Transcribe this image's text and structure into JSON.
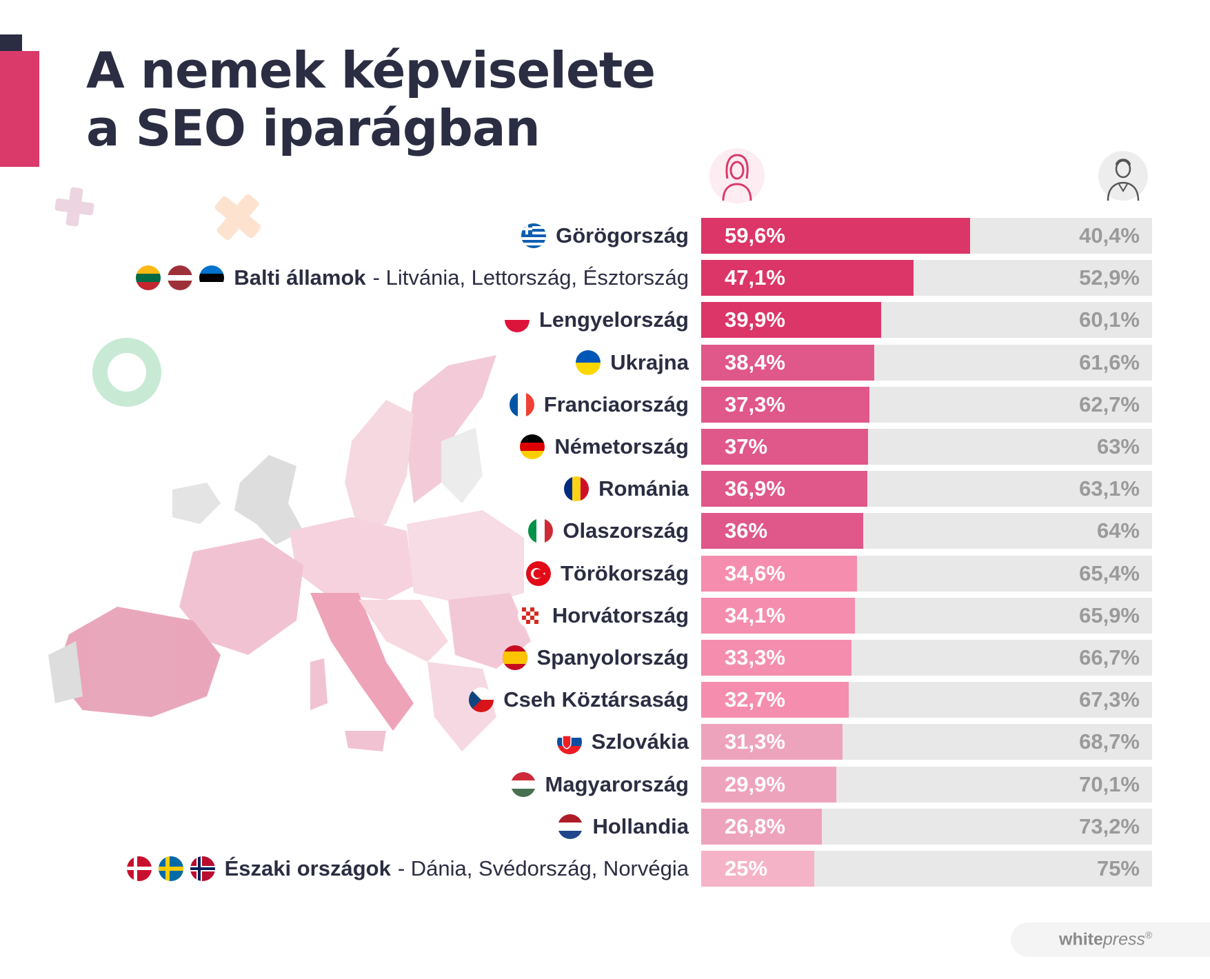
{
  "title": {
    "line1": "A nemek képviselete",
    "line2": "a SEO iparágban"
  },
  "colors": {
    "dark": "#2b2d42",
    "accent": "#d93a6a",
    "track": "#e8e8e8",
    "male_text": "#9a9a9a"
  },
  "icons": {
    "female": "female-person-icon",
    "male": "male-person-icon"
  },
  "chart_data": {
    "type": "bar",
    "stacked": true,
    "orientation": "horizontal",
    "title": "A nemek képviselete a SEO iparágban",
    "series": [
      {
        "name": "",
        "values": [
          59.6,
          47.1,
          39.9,
          38.4,
          37.3,
          37,
          36.9,
          36,
          34.6,
          34.1,
          33.3,
          32.7,
          31.3,
          29.9,
          26.8,
          25
        ]
      },
      {
        "name": "",
        "values": [
          40.4,
          52.9,
          60.1,
          61.6,
          62.7,
          63,
          63.1,
          64,
          65.4,
          65.9,
          66.7,
          67.3,
          68.7,
          70.1,
          73.2,
          75
        ]
      }
    ],
    "rows": [
      {
        "name": "Görögország",
        "sub": "",
        "flags": [
          "gr"
        ],
        "female": 59.6,
        "male": 40.4,
        "female_label": "59,6%",
        "male_label": "40,4%"
      },
      {
        "name": "Balti államok",
        "sub": "- Litvánia, Lettország, Észtország",
        "flags": [
          "lt",
          "lv",
          "ee"
        ],
        "female": 47.1,
        "male": 52.9,
        "female_label": "47,1%",
        "male_label": "52,9%"
      },
      {
        "name": "Lengyelország",
        "sub": "",
        "flags": [
          "pl"
        ],
        "female": 39.9,
        "male": 60.1,
        "female_label": "39,9%",
        "male_label": "60,1%"
      },
      {
        "name": "Ukrajna",
        "sub": "",
        "flags": [
          "ua"
        ],
        "female": 38.4,
        "male": 61.6,
        "female_label": "38,4%",
        "male_label": "61,6%"
      },
      {
        "name": "Franciaország",
        "sub": "",
        "flags": [
          "fr"
        ],
        "female": 37.3,
        "male": 62.7,
        "female_label": "37,3%",
        "male_label": "62,7%"
      },
      {
        "name": "Németország",
        "sub": "",
        "flags": [
          "de"
        ],
        "female": 37,
        "male": 63,
        "female_label": "37%",
        "male_label": "63%"
      },
      {
        "name": "Románia",
        "sub": "",
        "flags": [
          "ro"
        ],
        "female": 36.9,
        "male": 63.1,
        "female_label": "36,9%",
        "male_label": "63,1%"
      },
      {
        "name": "Olaszország",
        "sub": "",
        "flags": [
          "it"
        ],
        "female": 36,
        "male": 64,
        "female_label": "36%",
        "male_label": "64%"
      },
      {
        "name": "Törökország",
        "sub": "",
        "flags": [
          "tr"
        ],
        "female": 34.6,
        "male": 65.4,
        "female_label": "34,6%",
        "male_label": "65,4%"
      },
      {
        "name": "Horvátország",
        "sub": "",
        "flags": [
          "hr"
        ],
        "female": 34.1,
        "male": 65.9,
        "female_label": "34,1%",
        "male_label": "65,9%"
      },
      {
        "name": "Spanyolország",
        "sub": "",
        "flags": [
          "es"
        ],
        "female": 33.3,
        "male": 66.7,
        "female_label": "33,3%",
        "male_label": "66,7%"
      },
      {
        "name": "Cseh Köztársaság",
        "sub": "",
        "flags": [
          "cz"
        ],
        "female": 32.7,
        "male": 67.3,
        "female_label": "32,7%",
        "male_label": "67,3%"
      },
      {
        "name": "Szlovákia",
        "sub": "",
        "flags": [
          "sk"
        ],
        "female": 31.3,
        "male": 68.7,
        "female_label": "31,3%",
        "male_label": "68,7%"
      },
      {
        "name": "Magyarország",
        "sub": "",
        "flags": [
          "hu"
        ],
        "female": 29.9,
        "male": 70.1,
        "female_label": "29,9%",
        "male_label": "70,1%"
      },
      {
        "name": "Hollandia",
        "sub": "",
        "flags": [
          "nl"
        ],
        "female": 26.8,
        "male": 73.2,
        "female_label": "26,8%",
        "male_label": "73,2%"
      },
      {
        "name": "Északi országok",
        "sub": "- Dánia, Svédország, Norvégia",
        "flags": [
          "dk",
          "se",
          "no"
        ],
        "female": 25,
        "male": 75,
        "female_label": "25%",
        "male_label": "75%"
      }
    ],
    "xlim": [
      0,
      100
    ]
  },
  "logo": {
    "bold": "white",
    "italic": "press",
    "mark": "®"
  }
}
